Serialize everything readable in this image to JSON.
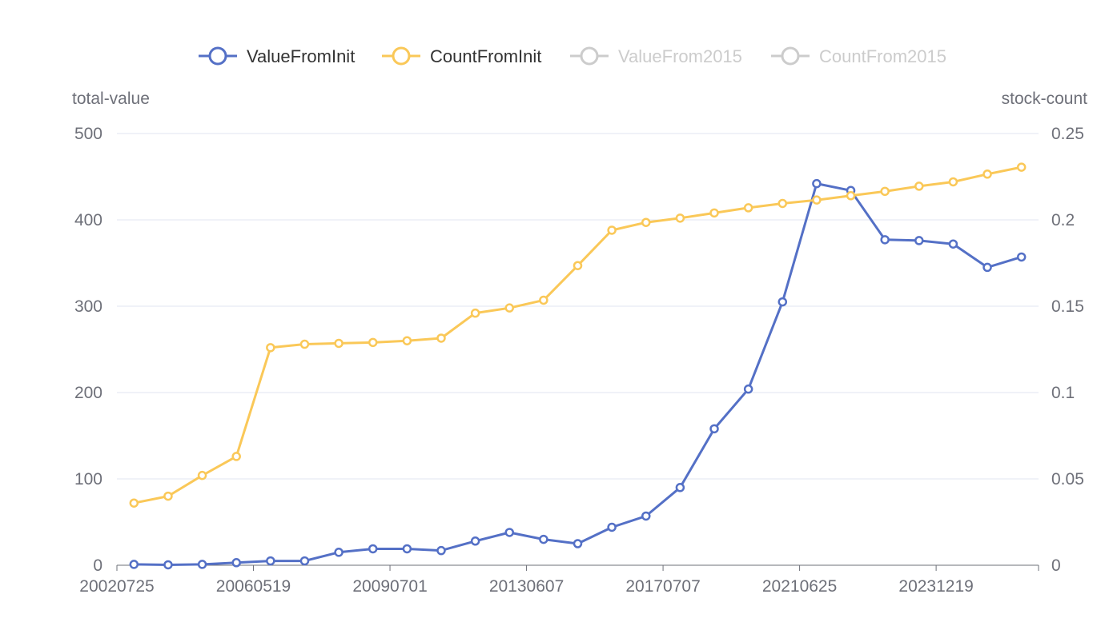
{
  "chart_data": {
    "type": "line",
    "title": "",
    "legend": {
      "placement": "top-center",
      "items": [
        {
          "name": "ValueFromInit",
          "color": "#5470c6",
          "active": true
        },
        {
          "name": "CountFromInit",
          "color": "#fac858",
          "active": true
        },
        {
          "name": "ValueFrom2015",
          "color": "#cccccc",
          "active": false
        },
        {
          "name": "CountFrom2015",
          "color": "#cccccc",
          "active": false
        }
      ]
    },
    "x_tick_labels": [
      "20020725",
      "20060519",
      "20090701",
      "20130607",
      "20170707",
      "20210625",
      "20231219"
    ],
    "x_tick_every": 4,
    "left_axis": {
      "name": "total-value",
      "min": 0,
      "max": 500,
      "ticks": [
        "0",
        "100",
        "200",
        "300",
        "400",
        "500"
      ]
    },
    "right_axis": {
      "name": "stock-count",
      "min": 0,
      "max": 0.25,
      "ticks": [
        "0",
        "0.05",
        "0.1",
        "0.15",
        "0.2",
        "0.25"
      ]
    },
    "grid": true,
    "series": [
      {
        "name": "ValueFromInit",
        "axis": "left",
        "color": "#5470c6",
        "values": [
          1,
          0.5,
          1,
          3,
          5,
          5,
          15,
          19,
          19,
          17,
          28,
          38,
          30,
          25,
          44,
          57,
          90,
          158,
          204,
          305,
          442,
          434,
          377,
          376,
          372,
          345,
          357
        ]
      },
      {
        "name": "CountFromInit",
        "axis": "right",
        "color": "#fac858",
        "values": [
          0.036,
          0.04,
          0.052,
          0.063,
          0.126,
          0.128,
          0.1285,
          0.129,
          0.13,
          0.1315,
          0.146,
          0.149,
          0.1535,
          0.1735,
          0.194,
          0.1985,
          0.201,
          0.204,
          0.207,
          0.2095,
          0.2115,
          0.214,
          0.2165,
          0.2195,
          0.222,
          0.2265,
          0.2305
        ]
      }
    ]
  }
}
